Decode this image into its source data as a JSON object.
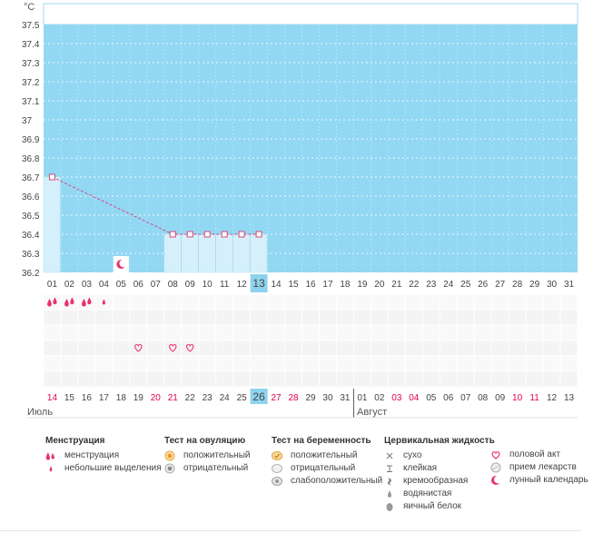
{
  "chart_data": {
    "type": "line",
    "y_unit": "°C",
    "y_ticks": [
      "37.5",
      "37.4",
      "37.3",
      "37.2",
      "37.1",
      "37",
      "36.9",
      "36.8",
      "36.7",
      "36.6",
      "36.5",
      "36.4",
      "36.3",
      "36.2"
    ],
    "ylim": [
      36.2,
      37.5
    ],
    "grid": true,
    "x_labels_top": [
      "01",
      "02",
      "03",
      "04",
      "05",
      "06",
      "07",
      "08",
      "09",
      "10",
      "11",
      "12",
      "13",
      "14",
      "15",
      "16",
      "17",
      "18",
      "19",
      "20",
      "21",
      "22",
      "23",
      "24",
      "25",
      "26",
      "27",
      "28",
      "29",
      "30",
      "31"
    ],
    "x_labels_bottom": [
      "14",
      "15",
      "16",
      "17",
      "18",
      "19",
      "20",
      "21",
      "22",
      "23",
      "24",
      "25",
      "26",
      "27",
      "28",
      "29",
      "30",
      "31",
      "01",
      "02",
      "03",
      "04",
      "05",
      "06",
      "07",
      "08",
      "09",
      "10",
      "11",
      "12",
      "13"
    ],
    "x_labels_bottom_red": [
      "14",
      "20",
      "21",
      "27",
      "28",
      "03",
      "04",
      "10",
      "11"
    ],
    "today_top": "13",
    "today_bottom": "26",
    "months": [
      "Июль",
      "Август"
    ],
    "series": [
      {
        "x": [
          "01",
          "08",
          "09",
          "10",
          "11",
          "12",
          "13"
        ],
        "y": [
          36.7,
          36.4,
          36.4,
          36.4,
          36.4,
          36.4,
          36.4
        ]
      }
    ],
    "moon_marker": "05",
    "menstruation_days": [
      "01",
      "02",
      "03"
    ],
    "light_spotting_days": [
      "04"
    ],
    "intercourse_days": [
      "06",
      "08",
      "09"
    ]
  },
  "legend": {
    "menstruation": {
      "title": "Менструация",
      "items": [
        "менструация",
        "небольшие выделения"
      ]
    },
    "ovulation": {
      "title": "Тест на овуляцию",
      "items": [
        "положительный",
        "отрицательный"
      ]
    },
    "pregnancy": {
      "title": "Тест на беременность",
      "items": [
        "положительный",
        "отрицательный",
        "слабоположительный"
      ]
    },
    "cervical": {
      "title": "Цервикальная жидкость",
      "items": [
        "сухо",
        "клейкая",
        "кремообразная",
        "водянистая",
        "яичный белок"
      ]
    },
    "other": {
      "items": [
        "половой акт",
        "прием лекарств",
        "лунный календарь"
      ]
    }
  },
  "colors": {
    "plot_bg": "#92d8f3",
    "line": "#d14a7a",
    "bar": "#d6f0fb",
    "red_label": "#e0004d",
    "today_bg": "#8ed3ee",
    "pink_icon": "#e8336d"
  }
}
